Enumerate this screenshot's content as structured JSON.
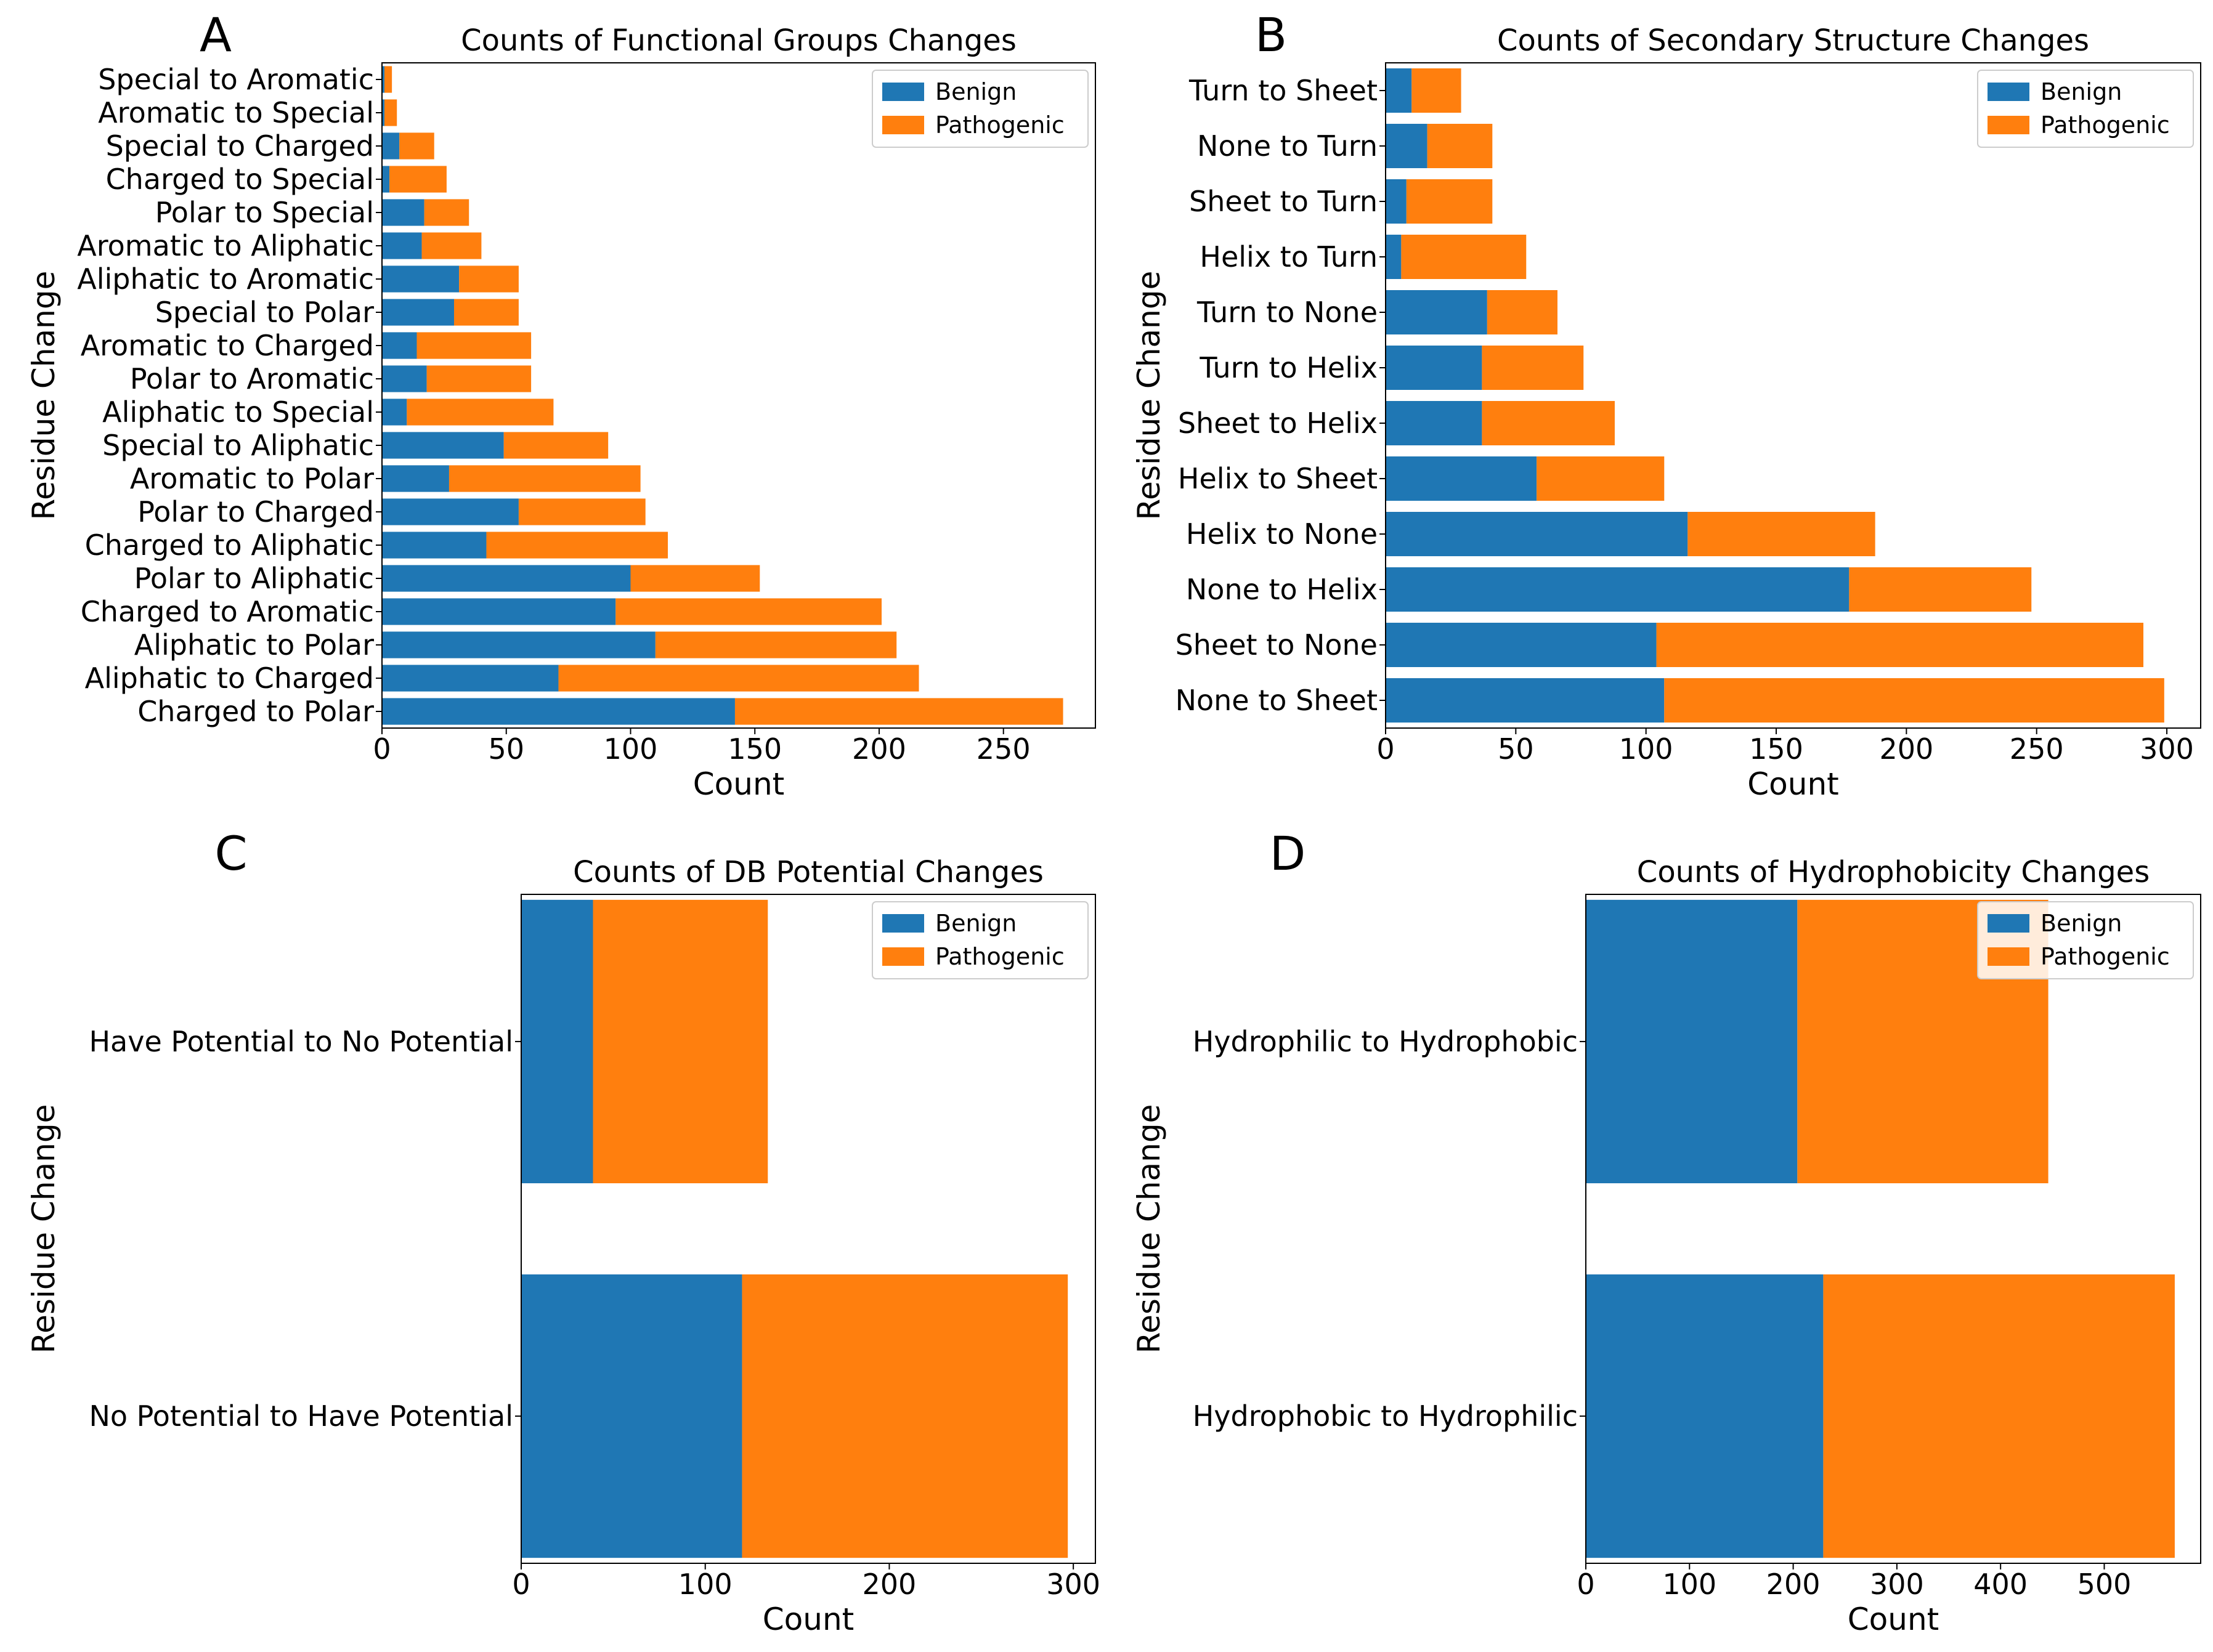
{
  "colors": {
    "benign": "#1f77b4",
    "pathogenic": "#ff7f0e"
  },
  "legend": {
    "benign": "Benign",
    "pathogenic": "Pathogenic"
  },
  "chart_data": [
    {
      "panel": "A",
      "type": "bar",
      "orientation": "horizontal",
      "stacked": true,
      "title": "Counts of Functional Groups Changes",
      "xlabel": "Count",
      "ylabel": "Residue Change",
      "xlim": [
        0,
        287
      ],
      "xticks": [
        0,
        50,
        100,
        150,
        200,
        250
      ],
      "legend_position": "top-right",
      "categories": [
        "Charged to Polar",
        "Aliphatic to Charged",
        "Aliphatic to Polar",
        "Charged to Aromatic",
        "Polar to Aliphatic",
        "Charged to Aliphatic",
        "Polar to Charged",
        "Aromatic to Polar",
        "Special to Aliphatic",
        "Aliphatic to Special",
        "Polar to Aromatic",
        "Aromatic to Charged",
        "Special to Polar",
        "Aliphatic to Aromatic",
        "Aromatic to Aliphatic",
        "Polar to Special",
        "Charged to Special",
        "Special to Charged",
        "Aromatic to Special",
        "Special to Aromatic"
      ],
      "series": [
        {
          "name": "Benign",
          "values": [
            142,
            71,
            110,
            94,
            100,
            42,
            55,
            27,
            49,
            10,
            18,
            14,
            29,
            31,
            16,
            17,
            3,
            7,
            1,
            1
          ]
        },
        {
          "name": "Pathogenic",
          "values": [
            132,
            145,
            97,
            107,
            52,
            73,
            51,
            77,
            42,
            59,
            42,
            46,
            26,
            24,
            24,
            18,
            23,
            14,
            5,
            3
          ]
        }
      ]
    },
    {
      "panel": "B",
      "type": "bar",
      "orientation": "horizontal",
      "stacked": true,
      "title": "Counts of Secondary Structure Changes",
      "xlabel": "Count",
      "ylabel": "Residue Change",
      "xlim": [
        0,
        313
      ],
      "xticks": [
        0,
        50,
        100,
        150,
        200,
        250,
        300
      ],
      "legend_position": "top-right",
      "categories": [
        "None to Sheet",
        "Sheet to None",
        "None to Helix",
        "Helix to None",
        "Helix to Sheet",
        "Sheet to Helix",
        "Turn to Helix",
        "Turn to None",
        "Helix to Turn",
        "Sheet to Turn",
        "None to Turn",
        "Turn to Sheet"
      ],
      "series": [
        {
          "name": "Benign",
          "values": [
            107,
            104,
            178,
            116,
            58,
            37,
            37,
            39,
            6,
            8,
            16,
            10
          ]
        },
        {
          "name": "Pathogenic",
          "values": [
            192,
            187,
            70,
            72,
            49,
            51,
            39,
            27,
            48,
            33,
            25,
            19
          ]
        }
      ]
    },
    {
      "panel": "C",
      "type": "bar",
      "orientation": "horizontal",
      "stacked": true,
      "title": "Counts of DB Potential Changes",
      "xlabel": "Count",
      "ylabel": "Residue Change",
      "xlim": [
        0,
        312
      ],
      "xticks": [
        0,
        100,
        200,
        300
      ],
      "legend_position": "top-right",
      "categories": [
        "No Potential to Have Potential",
        "Have Potential to No Potential"
      ],
      "series": [
        {
          "name": "Benign",
          "values": [
            120,
            39
          ]
        },
        {
          "name": "Pathogenic",
          "values": [
            177,
            95
          ]
        }
      ]
    },
    {
      "panel": "D",
      "type": "bar",
      "orientation": "horizontal",
      "stacked": true,
      "title": "Counts of Hydrophobicity Changes",
      "xlabel": "Count",
      "ylabel": "Residue Change",
      "xlim": [
        0,
        593
      ],
      "xticks": [
        0,
        100,
        200,
        300,
        400,
        500
      ],
      "legend_position": "top-right",
      "categories": [
        "Hydrophobic to Hydrophilic",
        "Hydrophilic to Hydrophobic"
      ],
      "series": [
        {
          "name": "Benign",
          "values": [
            229,
            204
          ]
        },
        {
          "name": "Pathogenic",
          "values": [
            339,
            242
          ]
        }
      ]
    }
  ]
}
